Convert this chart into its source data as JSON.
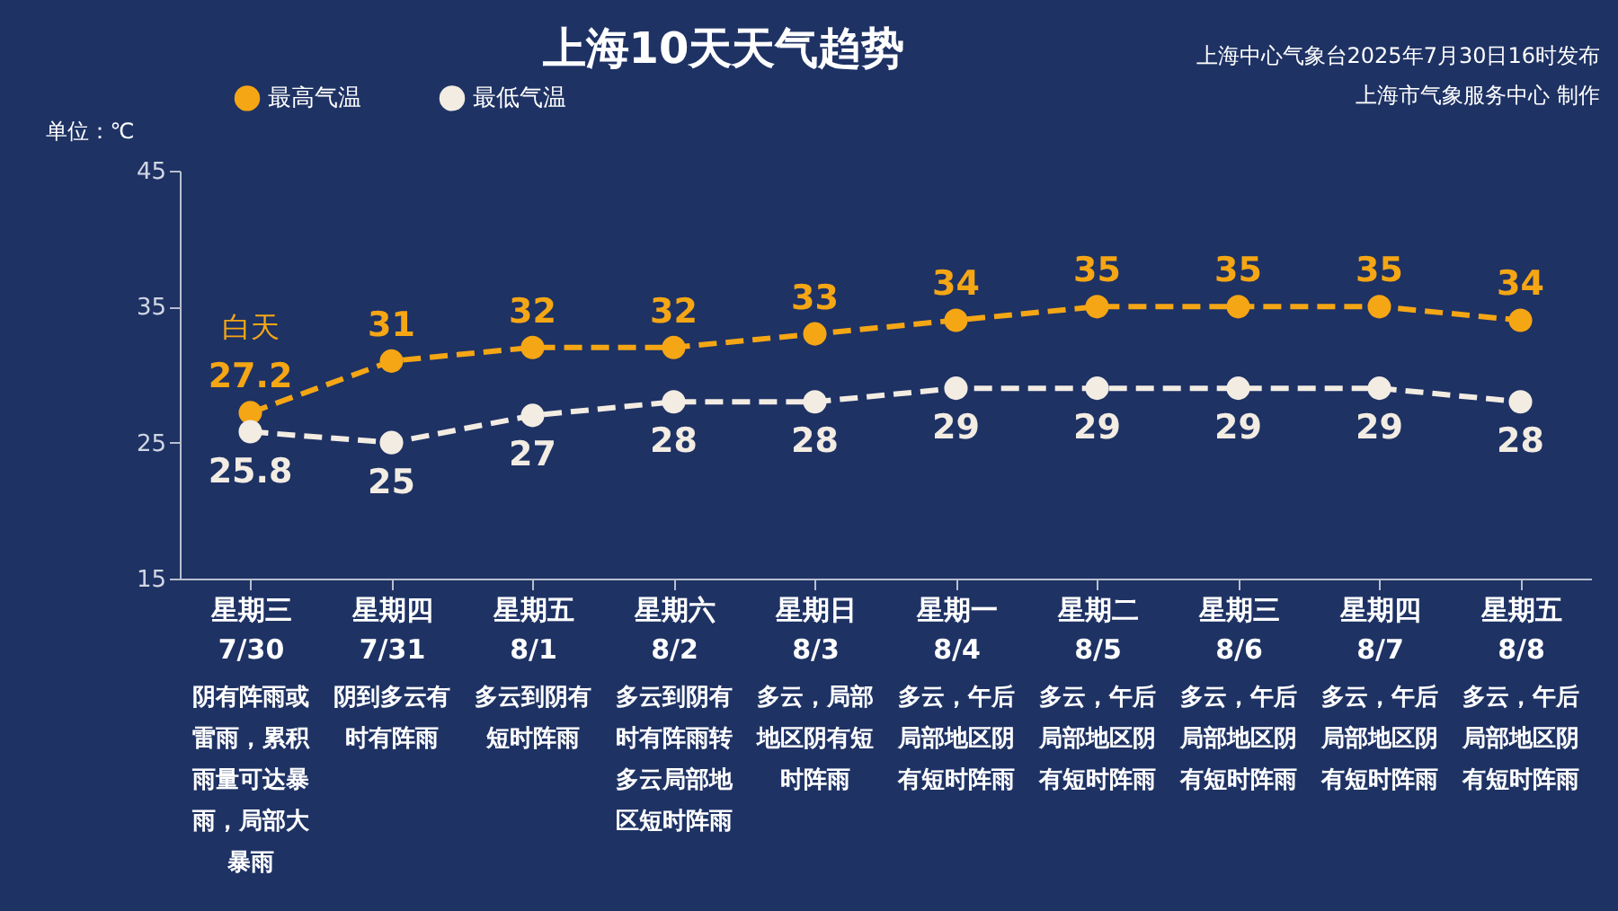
{
  "chart_data": {
    "type": "line",
    "title": "上海10天天气趋势",
    "ylabel": "单位：℃",
    "categories": [
      "星期三\n7/30",
      "星期四\n7/31",
      "星期五\n8/1",
      "星期六\n8/2",
      "星期日\n8/3",
      "星期一\n8/4",
      "星期二\n8/5",
      "星期三\n8/6",
      "星期四\n8/7",
      "星期五\n8/8"
    ],
    "series": [
      {
        "name": "最高气温",
        "color": "#f5a614",
        "values": [
          27.2,
          31,
          32,
          32,
          33,
          34,
          35,
          35,
          35,
          34
        ]
      },
      {
        "name": "最低气温",
        "color": "#f3ece2",
        "values": [
          25.8,
          25,
          27,
          28,
          28,
          29,
          29,
          29,
          29,
          28
        ]
      }
    ],
    "ylim": [
      15,
      45
    ],
    "yticks": [
      15,
      25,
      35,
      45
    ],
    "grid": false,
    "legend": "top left",
    "marker": "circle",
    "line_style": "dashed",
    "data_labels": true,
    "annotations": [
      "上海中心气象台2025年7月30日16时发布",
      "上海市气象服务中心 制作",
      {
        "text": "白天",
        "x": "星期三\n7/30",
        "y": 27.2
      },
      "阴有阵雨或雷雨，累积雨量可达暴雨，局部大暴雨",
      "阴到多云有时有阵雨",
      "多云到阴有短时阵雨",
      "多云到阴有时有阵雨转多云局部地区短时阵雨",
      "多云，局部地区阴有短时阵雨",
      "多云，午后局部地区阴有短时阵雨",
      "多云，午后局部地区阴有短时阵雨",
      "多云，午后局部地区阴有短时阵雨",
      "多云，午后局部地区阴有短时阵雨",
      "多云，午后局部地区阴有短时阵雨"
    ]
  }
}
